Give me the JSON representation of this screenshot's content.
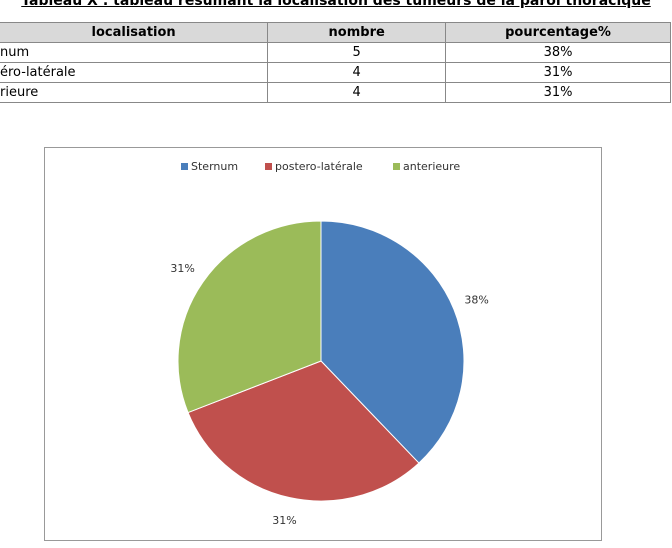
{
  "title": "Tableau X : tableau résumant la localisation des tumeurs de la paroi thoracique",
  "table": {
    "headers": [
      "localisation",
      "nombre",
      "pourcentage%"
    ],
    "rows": [
      [
        "num",
        "5",
        "38%"
      ],
      [
        "éro-latérale",
        "4",
        "31%"
      ],
      [
        "rieure",
        "4",
        "31%"
      ]
    ]
  },
  "chart_data": {
    "type": "pie",
    "categories": [
      "Sternum",
      "postero-latérale",
      "anterieure"
    ],
    "values": [
      38,
      31,
      31
    ],
    "value_labels": [
      "38%",
      "31%",
      "31%"
    ],
    "colors": [
      "#4a7ebb",
      "#c0504d",
      "#9bbb59"
    ],
    "legend": "top"
  }
}
